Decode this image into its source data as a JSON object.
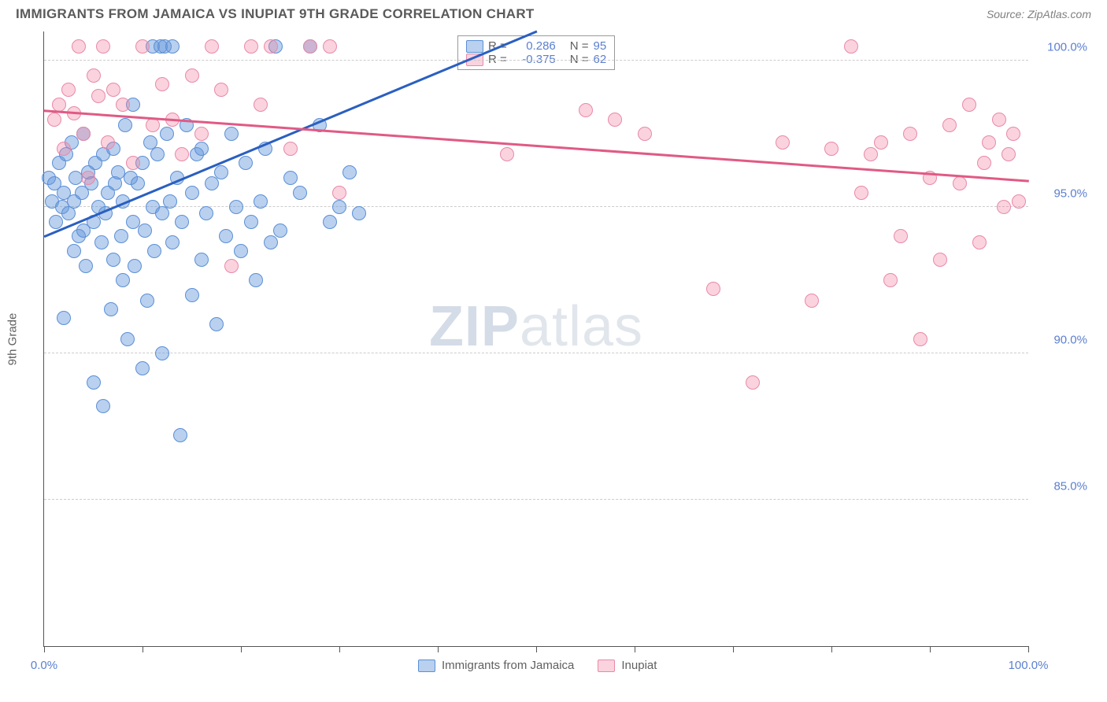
{
  "header": {
    "title": "IMMIGRANTS FROM JAMAICA VS INUPIAT 9TH GRADE CORRELATION CHART",
    "source": "Source: ZipAtlas.com"
  },
  "watermark": {
    "part1": "ZIP",
    "part2": "atlas"
  },
  "chart": {
    "type": "scatter",
    "ylabel": "9th Grade",
    "xlim": [
      0,
      100
    ],
    "ylim": [
      80,
      101
    ],
    "background_color": "#ffffff",
    "grid_color": "#cccccc",
    "axis_color": "#555555",
    "tick_label_color": "#5b7fd1",
    "label_fontsize": 15,
    "title_fontsize": 17,
    "point_radius": 9,
    "x_ticks": [
      0,
      10,
      20,
      30,
      40,
      50,
      60,
      70,
      80,
      90,
      100
    ],
    "x_tick_labels": [
      {
        "pos": 0,
        "label": "0.0%"
      },
      {
        "pos": 100,
        "label": "100.0%"
      }
    ],
    "y_gridlines": [
      85,
      90,
      95,
      100
    ],
    "y_tick_labels": [
      {
        "pos": 85,
        "label": "85.0%"
      },
      {
        "pos": 90,
        "label": "90.0%"
      },
      {
        "pos": 95,
        "label": "95.0%"
      },
      {
        "pos": 100,
        "label": "100.0%"
      }
    ],
    "series": [
      {
        "name": "Immigrants from Jamaica",
        "fill_color": "rgba(100,150,220,0.45)",
        "stroke_color": "#5b8fd6",
        "line_color": "#2a5fc0",
        "R": "0.286",
        "N": "95",
        "trend": {
          "x1": 0,
          "y1": 94.0,
          "x2": 50,
          "y2": 101.0
        },
        "points": [
          [
            0.5,
            96.0
          ],
          [
            0.8,
            95.2
          ],
          [
            1.0,
            95.8
          ],
          [
            1.2,
            94.5
          ],
          [
            1.5,
            96.5
          ],
          [
            1.8,
            95.0
          ],
          [
            2.0,
            95.5
          ],
          [
            2.0,
            91.2
          ],
          [
            2.2,
            96.8
          ],
          [
            2.5,
            94.8
          ],
          [
            2.8,
            97.2
          ],
          [
            3.0,
            95.2
          ],
          [
            3.0,
            93.5
          ],
          [
            3.2,
            96.0
          ],
          [
            3.5,
            94.0
          ],
          [
            3.8,
            95.5
          ],
          [
            4.0,
            94.2
          ],
          [
            4.0,
            97.5
          ],
          [
            4.2,
            93.0
          ],
          [
            4.5,
            96.2
          ],
          [
            4.8,
            95.8
          ],
          [
            5.0,
            89.0
          ],
          [
            5.0,
            94.5
          ],
          [
            5.2,
            96.5
          ],
          [
            5.5,
            95.0
          ],
          [
            5.8,
            93.8
          ],
          [
            6.0,
            88.2
          ],
          [
            6.0,
            96.8
          ],
          [
            6.2,
            94.8
          ],
          [
            6.5,
            95.5
          ],
          [
            6.8,
            91.5
          ],
          [
            7.0,
            97.0
          ],
          [
            7.0,
            93.2
          ],
          [
            7.2,
            95.8
          ],
          [
            7.5,
            96.2
          ],
          [
            7.8,
            94.0
          ],
          [
            8.0,
            92.5
          ],
          [
            8.0,
            95.2
          ],
          [
            8.2,
            97.8
          ],
          [
            8.5,
            90.5
          ],
          [
            8.8,
            96.0
          ],
          [
            9.0,
            94.5
          ],
          [
            9.0,
            98.5
          ],
          [
            9.2,
            93.0
          ],
          [
            9.5,
            95.8
          ],
          [
            10.0,
            89.5
          ],
          [
            10.0,
            96.5
          ],
          [
            10.2,
            94.2
          ],
          [
            10.5,
            91.8
          ],
          [
            10.8,
            97.2
          ],
          [
            11.0,
            95.0
          ],
          [
            11.0,
            100.5
          ],
          [
            11.2,
            93.5
          ],
          [
            11.5,
            96.8
          ],
          [
            11.8,
            100.5
          ],
          [
            12.0,
            90.0
          ],
          [
            12.0,
            94.8
          ],
          [
            12.2,
            100.5
          ],
          [
            12.5,
            97.5
          ],
          [
            12.8,
            95.2
          ],
          [
            13.0,
            100.5
          ],
          [
            13.0,
            93.8
          ],
          [
            13.5,
            96.0
          ],
          [
            13.8,
            87.2
          ],
          [
            14.0,
            94.5
          ],
          [
            14.5,
            97.8
          ],
          [
            15.0,
            92.0
          ],
          [
            15.0,
            95.5
          ],
          [
            15.5,
            96.8
          ],
          [
            16.0,
            93.2
          ],
          [
            16.0,
            97.0
          ],
          [
            16.5,
            94.8
          ],
          [
            17.0,
            95.8
          ],
          [
            17.5,
            91.0
          ],
          [
            18.0,
            96.2
          ],
          [
            18.5,
            94.0
          ],
          [
            19.0,
            97.5
          ],
          [
            19.5,
            95.0
          ],
          [
            20.0,
            93.5
          ],
          [
            20.5,
            96.5
          ],
          [
            21.0,
            94.5
          ],
          [
            21.5,
            92.5
          ],
          [
            22.0,
            95.2
          ],
          [
            22.5,
            97.0
          ],
          [
            23.0,
            93.8
          ],
          [
            23.5,
            100.5
          ],
          [
            24.0,
            94.2
          ],
          [
            25.0,
            96.0
          ],
          [
            26.0,
            95.5
          ],
          [
            27.0,
            100.5
          ],
          [
            28.0,
            97.8
          ],
          [
            29.0,
            94.5
          ],
          [
            30.0,
            95.0
          ],
          [
            31.0,
            96.2
          ],
          [
            32.0,
            94.8
          ]
        ]
      },
      {
        "name": "Inupiat",
        "fill_color": "rgba(240,130,160,0.35)",
        "stroke_color": "#e989a8",
        "line_color": "#e05a85",
        "R": "-0.375",
        "N": "62",
        "trend": {
          "x1": 0,
          "y1": 98.3,
          "x2": 100,
          "y2": 95.9
        },
        "points": [
          [
            1.0,
            98.0
          ],
          [
            1.5,
            98.5
          ],
          [
            2.0,
            97.0
          ],
          [
            2.5,
            99.0
          ],
          [
            3.0,
            98.2
          ],
          [
            3.5,
            100.5
          ],
          [
            4.0,
            97.5
          ],
          [
            4.5,
            96.0
          ],
          [
            5.0,
            99.5
          ],
          [
            5.5,
            98.8
          ],
          [
            6.0,
            100.5
          ],
          [
            6.5,
            97.2
          ],
          [
            7.0,
            99.0
          ],
          [
            8.0,
            98.5
          ],
          [
            9.0,
            96.5
          ],
          [
            10.0,
            100.5
          ],
          [
            11.0,
            97.8
          ],
          [
            12.0,
            99.2
          ],
          [
            13.0,
            98.0
          ],
          [
            14.0,
            96.8
          ],
          [
            15.0,
            99.5
          ],
          [
            16.0,
            97.5
          ],
          [
            17.0,
            100.5
          ],
          [
            18.0,
            99.0
          ],
          [
            19.0,
            93.0
          ],
          [
            21.0,
            100.5
          ],
          [
            22.0,
            98.5
          ],
          [
            23.0,
            100.5
          ],
          [
            25.0,
            97.0
          ],
          [
            27.0,
            100.5
          ],
          [
            29.0,
            100.5
          ],
          [
            30.0,
            95.5
          ],
          [
            47.0,
            96.8
          ],
          [
            55.0,
            98.3
          ],
          [
            58.0,
            98.0
          ],
          [
            61.0,
            97.5
          ],
          [
            68.0,
            92.2
          ],
          [
            72.0,
            89.0
          ],
          [
            75.0,
            97.2
          ],
          [
            78.0,
            91.8
          ],
          [
            80.0,
            97.0
          ],
          [
            82.0,
            100.5
          ],
          [
            83.0,
            95.5
          ],
          [
            84.0,
            96.8
          ],
          [
            85.0,
            97.2
          ],
          [
            86.0,
            92.5
          ],
          [
            87.0,
            94.0
          ],
          [
            88.0,
            97.5
          ],
          [
            89.0,
            90.5
          ],
          [
            90.0,
            96.0
          ],
          [
            91.0,
            93.2
          ],
          [
            92.0,
            97.8
          ],
          [
            93.0,
            95.8
          ],
          [
            94.0,
            98.5
          ],
          [
            95.0,
            93.8
          ],
          [
            95.5,
            96.5
          ],
          [
            96.0,
            97.2
          ],
          [
            97.0,
            98.0
          ],
          [
            97.5,
            95.0
          ],
          [
            98.0,
            96.8
          ],
          [
            98.5,
            97.5
          ],
          [
            99.0,
            95.2
          ]
        ]
      }
    ],
    "bottom_legend": [
      {
        "swatch_fill": "rgba(100,150,220,0.45)",
        "swatch_stroke": "#5b8fd6",
        "label": "Immigrants from Jamaica"
      },
      {
        "swatch_fill": "rgba(240,130,160,0.35)",
        "swatch_stroke": "#e989a8",
        "label": "Inupiat"
      }
    ],
    "top_legend_labels": {
      "R": "R =",
      "N": "N ="
    }
  }
}
